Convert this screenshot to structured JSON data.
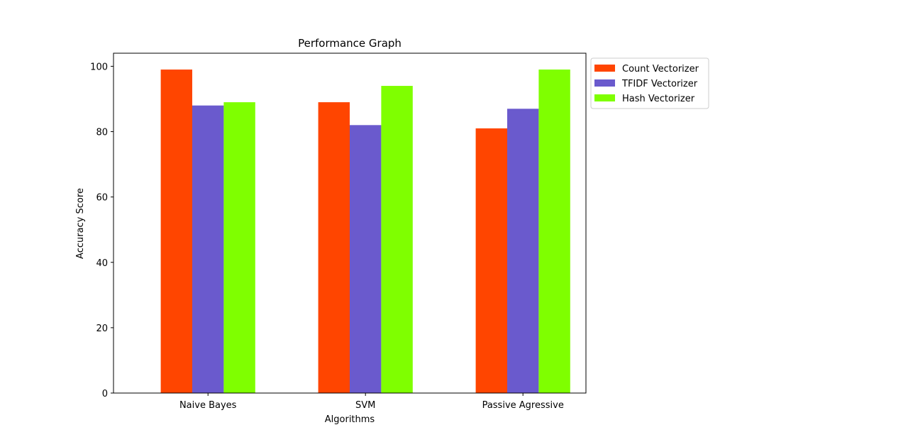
{
  "chart_data": {
    "type": "bar",
    "title": "Performance Graph",
    "xlabel": "Algorithms",
    "ylabel": "Accuracy Score",
    "categories": [
      "Naive Bayes",
      "SVM",
      "Passive Agressive"
    ],
    "series": [
      {
        "name": "Count Vectorizer",
        "values": [
          99,
          89,
          81
        ],
        "color": "#ff4500"
      },
      {
        "name": "TFIDF Vectorizer",
        "values": [
          88,
          82,
          87
        ],
        "color": "#6a5acd"
      },
      {
        "name": "Hash Vectorizer",
        "values": [
          89,
          94,
          99
        ],
        "color": "#7fff00"
      }
    ],
    "ylim": [
      0,
      104
    ],
    "yticks": [
      0,
      20,
      40,
      60,
      80,
      100
    ],
    "grid": false,
    "legend_position": "outside-top-right"
  }
}
